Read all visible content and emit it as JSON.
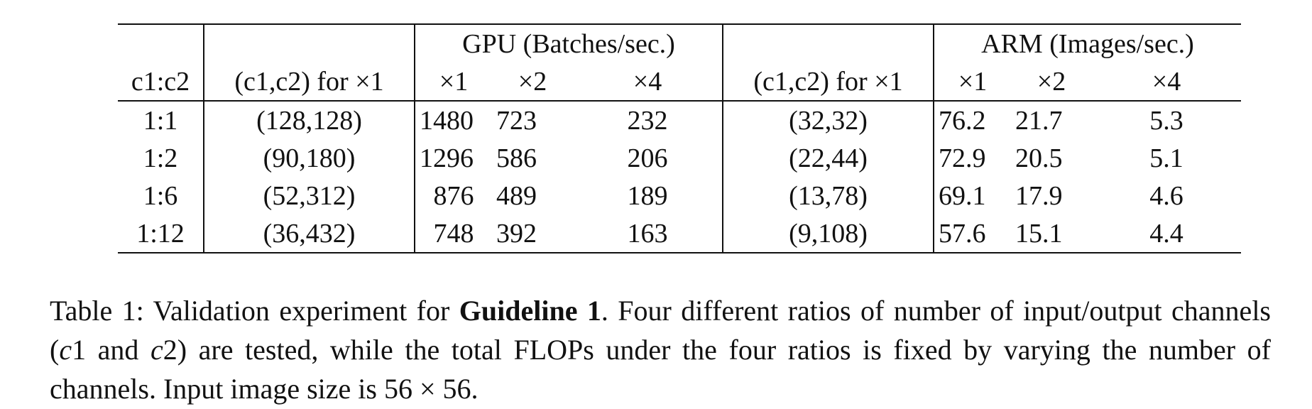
{
  "table": {
    "group_headers": {
      "gpu": "GPU (Batches/sec.)",
      "arm": "ARM (Images/sec.)"
    },
    "column_headers": {
      "ratio": "c1:c2",
      "gpu_pair": "(c1,c2) for ×1",
      "gpu_x1": "×1",
      "gpu_x2": "×2",
      "gpu_x4": "×4",
      "arm_pair": "(c1,c2) for ×1",
      "arm_x1": "×1",
      "arm_x2": "×2",
      "arm_x4": "×4"
    },
    "rows": [
      {
        "ratio": "1:1",
        "gpu_pair": "(128,128)",
        "gpu_x1": "1480",
        "gpu_x2": "723",
        "gpu_x4": "232",
        "arm_pair": "(32,32)",
        "arm_x1": "76.2",
        "arm_x2": "21.7",
        "arm_x4": "5.3"
      },
      {
        "ratio": "1:2",
        "gpu_pair": "(90,180)",
        "gpu_x1": "1296",
        "gpu_x2": "586",
        "gpu_x4": "206",
        "arm_pair": "(22,44)",
        "arm_x1": "72.9",
        "arm_x2": "20.5",
        "arm_x4": "5.1"
      },
      {
        "ratio": "1:6",
        "gpu_pair": "(52,312)",
        "gpu_x1": "876",
        "gpu_x2": "489",
        "gpu_x4": "189",
        "arm_pair": "(13,78)",
        "arm_x1": "69.1",
        "arm_x2": "17.9",
        "arm_x4": "4.6"
      },
      {
        "ratio": "1:12",
        "gpu_pair": "(36,432)",
        "gpu_x1": "748",
        "gpu_x2": "392",
        "gpu_x4": "163",
        "arm_pair": "(9,108)",
        "arm_x1": "57.6",
        "arm_x2": "15.1",
        "arm_x4": "4.4"
      }
    ]
  },
  "caption": {
    "label": "Table 1:",
    "text_1": "Validation experiment for",
    "bold": "Guideline 1",
    "text_2": ". Four different ratios of number of input/output channels (",
    "c1": "c",
    "c1_sub": "1",
    "and": " and ",
    "c2": "c",
    "c2_sub": "2",
    "text_3": ") are tested, while the total FLOPs under the four ratios is fixed by varying the number of channels. Input image size is 56 × 56."
  }
}
